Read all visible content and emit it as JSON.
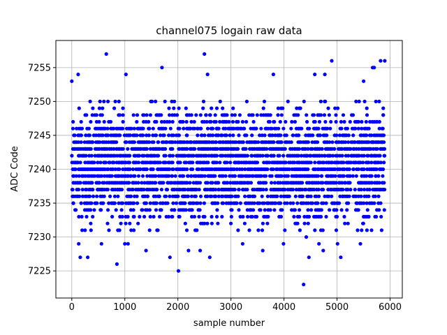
{
  "chart_data": {
    "type": "scatter",
    "title": "channel075 logain raw data",
    "xlabel": "sample number",
    "ylabel": "ADC Code",
    "xlim": [
      -300,
      6230
    ],
    "ylim": [
      7221,
      7259
    ],
    "xticks": [
      0,
      1000,
      2000,
      3000,
      4000,
      5000,
      6000
    ],
    "yticks": [
      7225,
      7230,
      7235,
      7240,
      7245,
      7250,
      7255
    ],
    "grid": true,
    "series": [
      {
        "color": "#0000ff",
        "marker": "circle",
        "x_range": [
          0,
          5900
        ],
        "dense_band": [
          7231,
          7250
        ],
        "points": [
          [
            650,
            7257
          ],
          [
            2500,
            7257
          ],
          [
            2010,
            7225
          ],
          [
            4370,
            7223
          ],
          [
            850,
            7226
          ],
          [
            1700,
            7255
          ],
          [
            4900,
            7256
          ],
          [
            5700,
            7255
          ],
          [
            5820,
            7256
          ],
          [
            5900,
            7256
          ],
          [
            0,
            7253
          ],
          [
            120,
            7254
          ],
          [
            1020,
            7254
          ],
          [
            2560,
            7254
          ],
          [
            3800,
            7254
          ],
          [
            4580,
            7254
          ],
          [
            4770,
            7254
          ],
          [
            5500,
            7253
          ],
          [
            5670,
            7255
          ],
          [
            130,
            7229
          ],
          [
            160,
            7227
          ],
          [
            300,
            7227
          ],
          [
            560,
            7229
          ],
          [
            1000,
            7229
          ],
          [
            1060,
            7229
          ],
          [
            1400,
            7228
          ],
          [
            1850,
            7227
          ],
          [
            2200,
            7228
          ],
          [
            2420,
            7228
          ],
          [
            2600,
            7227
          ],
          [
            3220,
            7229
          ],
          [
            3600,
            7228
          ],
          [
            3990,
            7229
          ],
          [
            4470,
            7227
          ],
          [
            4660,
            7229
          ],
          [
            4740,
            7228
          ],
          [
            5010,
            7229
          ],
          [
            5070,
            7227
          ],
          [
            5440,
            7229
          ],
          [
            4420,
            7230
          ],
          [
            5840,
            7231
          ]
        ]
      }
    ]
  }
}
